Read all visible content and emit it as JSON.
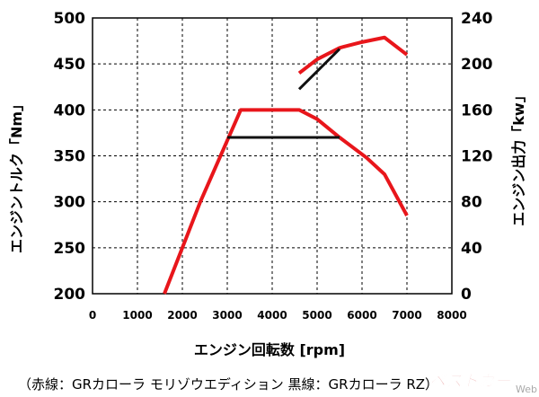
{
  "chart_data": {
    "type": "line",
    "xlabel": "エンジン回転数 [rpm]",
    "ylabel_left": "エンジントルク「Nm」",
    "ylabel_right": "エンジン出力「kw」",
    "xlim": [
      0,
      8000
    ],
    "ylim_left": [
      200,
      500
    ],
    "ylim_right": [
      0,
      240
    ],
    "x_ticks": [
      0,
      1000,
      2000,
      3000,
      4000,
      5000,
      6000,
      7000,
      8000
    ],
    "y_left_ticks": [
      200,
      250,
      300,
      350,
      400,
      450,
      500
    ],
    "y_right_ticks": [
      0,
      40,
      80,
      120,
      160,
      200,
      240
    ],
    "grid": true,
    "caption": "（赤線：GRカローラ モリゾウエディション 黒線：GRカローラ RZ）",
    "series": [
      {
        "color": "#e8161b",
        "axis": "left",
        "x": [
          1600,
          2400,
          3300,
          4600,
          5000,
          5500,
          6100,
          6500,
          7000
        ],
        "y": [
          200,
          300,
          400,
          400,
          390,
          370,
          348,
          330,
          285
        ]
      },
      {
        "color": "#e8161b",
        "axis": "right",
        "x": [
          4600,
          5000,
          5500,
          6000,
          6500,
          7000
        ],
        "y": [
          192,
          204,
          214,
          219,
          223,
          208
        ]
      },
      {
        "color": "#111111",
        "axis": "left",
        "x": [
          3000,
          5500
        ],
        "y": [
          370,
          370
        ]
      },
      {
        "color": "#111111",
        "axis": "right",
        "x": [
          4600,
          5500
        ],
        "y": [
          178,
          213
        ]
      }
    ]
  },
  "watermark": {
    "brand": "ベストカー",
    "suffix": "Web"
  }
}
